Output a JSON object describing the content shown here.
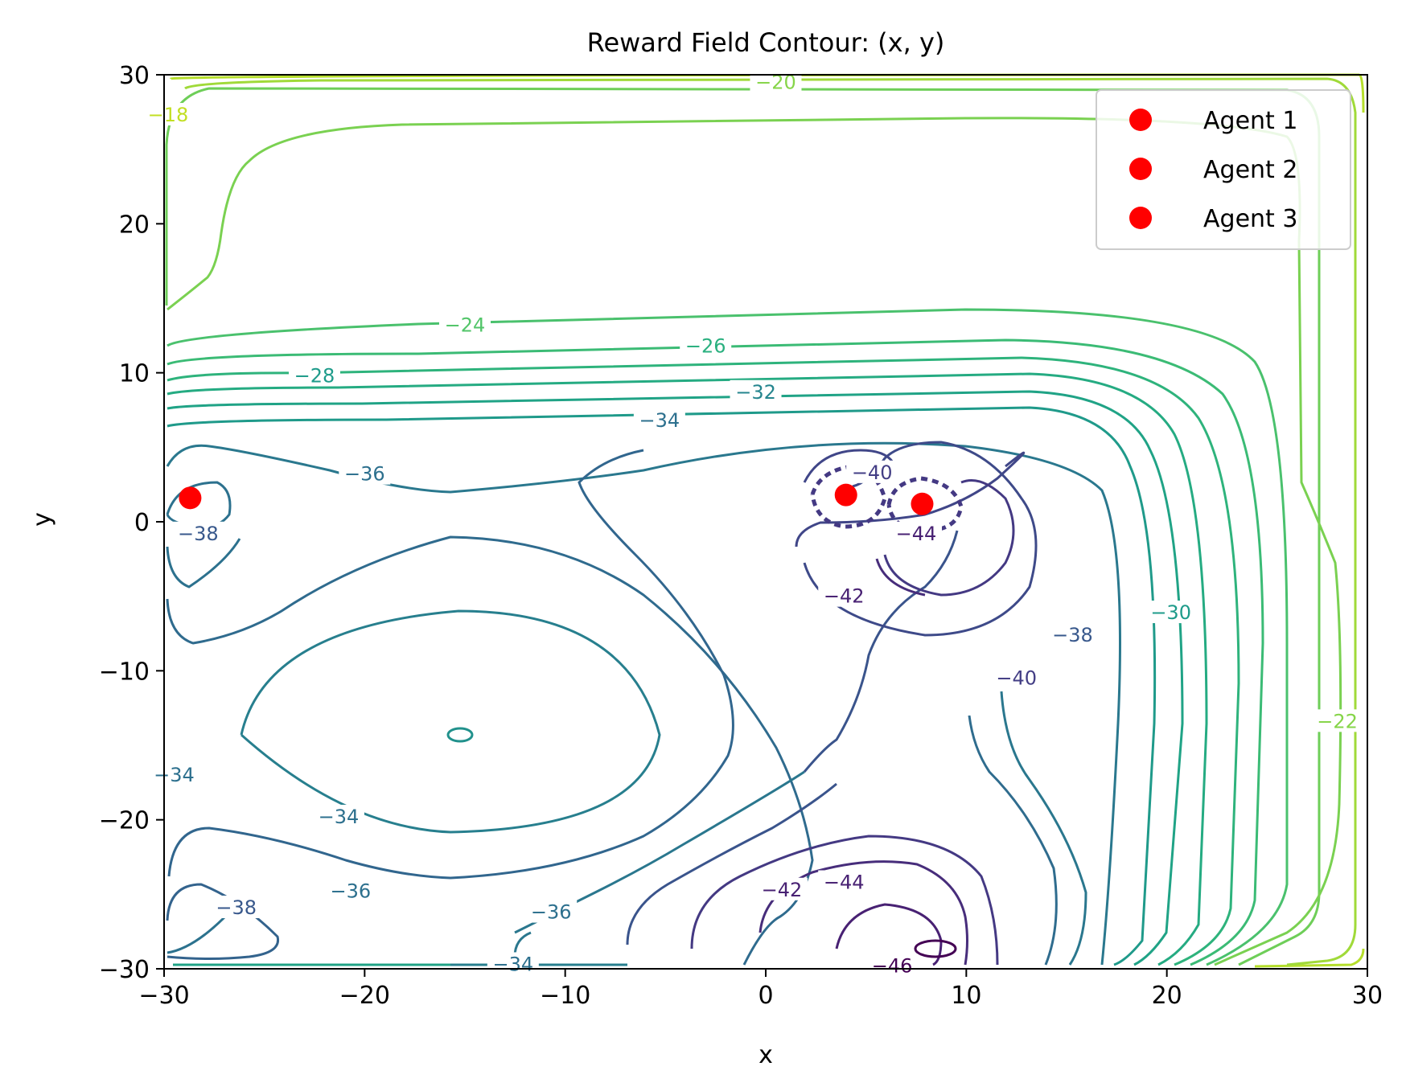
{
  "chart_data": {
    "type": "contour",
    "title": "Reward Field Contour: (x, y)",
    "xlabel": "x",
    "ylabel": "y",
    "xlim": [
      -30,
      30
    ],
    "ylim": [
      -30,
      30
    ],
    "xticks": [
      -30,
      -20,
      -10,
      0,
      10,
      20,
      30
    ],
    "yticks": [
      -30,
      -20,
      -10,
      0,
      10,
      20,
      30
    ],
    "tick_labels_x": [
      "−30",
      "−20",
      "−10",
      "0",
      "10",
      "20",
      "30"
    ],
    "tick_labels_y": [
      "−30",
      "−20",
      "−10",
      "0",
      "10",
      "20",
      "30"
    ],
    "colormap": "viridis",
    "contour_level_labels": [
      {
        "text": "−20",
        "x": 0.5,
        "y": 29.5
      },
      {
        "text": "−18",
        "x": -29.8,
        "y": 27.3
      },
      {
        "text": "−24",
        "x": -15,
        "y": 13.2
      },
      {
        "text": "−26",
        "x": -3,
        "y": 11.8
      },
      {
        "text": "−28",
        "x": -22.5,
        "y": 9.8
      },
      {
        "text": "−32",
        "x": -0.5,
        "y": 8.7
      },
      {
        "text": "−34",
        "x": -5.3,
        "y": 6.8
      },
      {
        "text": "−36",
        "x": -20,
        "y": 3.2
      },
      {
        "text": "−38",
        "x": -28.3,
        "y": -0.8
      },
      {
        "text": "−40",
        "x": 5.3,
        "y": 3.3
      },
      {
        "text": "−44",
        "x": 7.5,
        "y": -0.8
      },
      {
        "text": "−42",
        "x": 3.9,
        "y": -5
      },
      {
        "text": "−40",
        "x": 12.5,
        "y": -10.5
      },
      {
        "text": "−38",
        "x": 15.3,
        "y": -7.6
      },
      {
        "text": "−30",
        "x": 20.2,
        "y": -6.1
      },
      {
        "text": "−22",
        "x": 28.5,
        "y": -13.4
      },
      {
        "text": "−34",
        "x": -29.5,
        "y": -17
      },
      {
        "text": "−34",
        "x": -21.3,
        "y": -19.8
      },
      {
        "text": "−36",
        "x": -20.7,
        "y": -24.8
      },
      {
        "text": "−38",
        "x": -26.4,
        "y": -25.9
      },
      {
        "text": "−36",
        "x": -10.7,
        "y": -26.2
      },
      {
        "text": "−42",
        "x": 0.8,
        "y": -24.7
      },
      {
        "text": "−44",
        "x": 3.9,
        "y": -24.2
      },
      {
        "text": "−34",
        "x": -12.6,
        "y": -29.7
      },
      {
        "text": "−46",
        "x": 6.3,
        "y": -29.8
      }
    ],
    "series": [
      {
        "name": "Agent 1",
        "x": [
          -28.7
        ],
        "y": [
          1.6
        ],
        "color": "#ff0000"
      },
      {
        "name": "Agent 2",
        "x": [
          4.0
        ],
        "y": [
          1.8
        ],
        "color": "#ff0000"
      },
      {
        "name": "Agent 3",
        "x": [
          7.8
        ],
        "y": [
          1.2
        ],
        "color": "#ff0000"
      }
    ],
    "legend": {
      "position": "top-right"
    },
    "grid": false
  }
}
